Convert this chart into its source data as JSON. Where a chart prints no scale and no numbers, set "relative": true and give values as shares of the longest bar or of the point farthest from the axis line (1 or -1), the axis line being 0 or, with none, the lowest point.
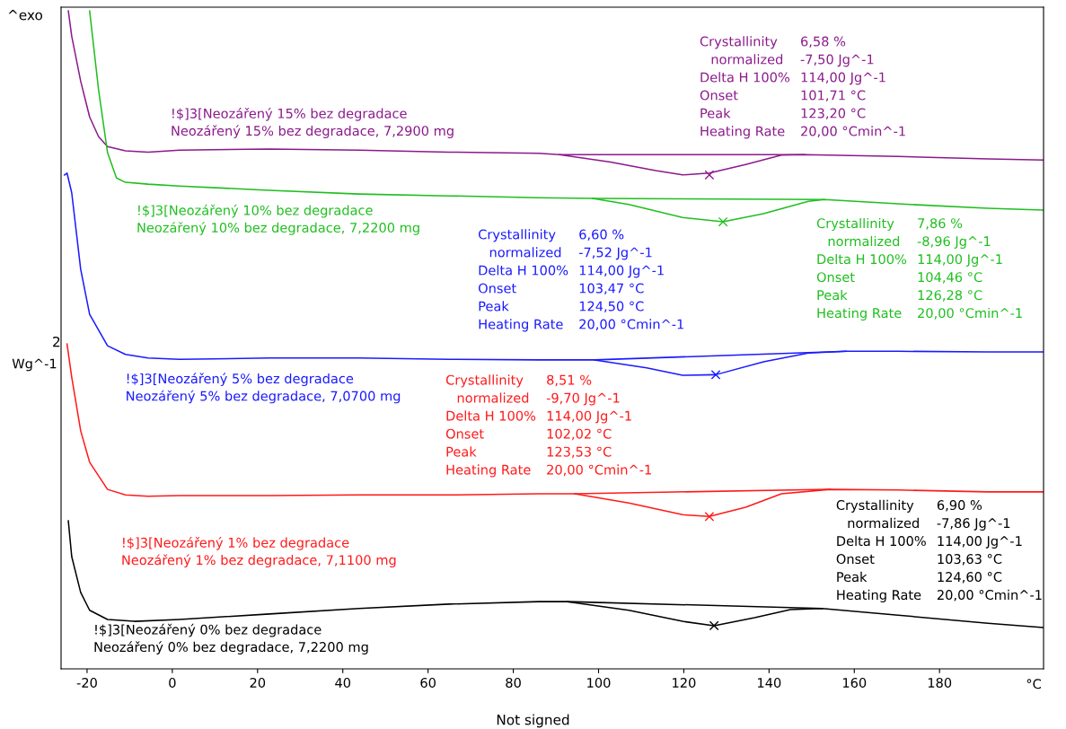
{
  "chart_data": {
    "type": "line",
    "relative": true,
    "xlabel": "°C",
    "ylabel": "Wg^-1",
    "xlim": [
      -26.1,
      204.4
    ],
    "xticks": [
      -20,
      0,
      20,
      40,
      60,
      80,
      100,
      120,
      140,
      160,
      180
    ],
    "tick_labels": "x",
    "grid": false,
    "legend": false,
    "series": [
      {
        "name": "!$]3[Neozářený 15% bez degradace\nNeozářený 15% bez degradace, 7,2900 mg",
        "color": "#8b1a8b",
        "x": [
          -24.4,
          -23.6,
          -21.5,
          -19.4,
          -17.3,
          -15.2,
          -11.0,
          -5.7,
          1.7,
          22.8,
          43.8,
          64.9,
          86.0,
          90.8,
          102.8,
          113.4,
          119.7,
          126.0,
          134.5,
          142.9,
          148.4,
          170.3,
          191.4,
          204.4
        ],
        "values": [
          1.0,
          0.959,
          0.886,
          0.828,
          0.796,
          0.78,
          0.773,
          0.771,
          0.774,
          0.776,
          0.774,
          0.771,
          0.769,
          0.767,
          0.755,
          0.741,
          0.734,
          0.737,
          0.751,
          0.766,
          0.767,
          0.764,
          0.76,
          0.758
        ]
      },
      {
        "name": "!$]3[Neozářený 10% bez degradace\nNeozářený 10% bez degradace, 7,2200 mg",
        "color": "#1fbf1f",
        "x": [
          -19.4,
          -17.3,
          -15.2,
          -13.1,
          -11.0,
          -5.7,
          1.7,
          22.8,
          43.8,
          64.9,
          86.0,
          98.6,
          107.1,
          119.7,
          129.2,
          138.7,
          149.2,
          153.0,
          170.3,
          191.4,
          204.4
        ],
        "values": [
          1.0,
          0.872,
          0.77,
          0.729,
          0.722,
          0.719,
          0.716,
          0.709,
          0.703,
          0.7,
          0.697,
          0.696,
          0.686,
          0.665,
          0.658,
          0.671,
          0.691,
          0.694,
          0.687,
          0.68,
          0.677
        ]
      },
      {
        "name": "!$]3[Neozářený 5% bez degradace\nNeozářený 5% bez degradace, 7,0700 mg",
        "color": "#1a1aff",
        "x": [
          -25.3,
          -24.7,
          -23.6,
          -21.5,
          -19.4,
          -15.2,
          -11.0,
          -5.7,
          1.7,
          22.8,
          43.8,
          64.9,
          86.0,
          99.1,
          111.3,
          119.7,
          127.5,
          138.7,
          149.2,
          158.1,
          170.3,
          191.4,
          204.4
        ],
        "values": [
          0.734,
          0.737,
          0.705,
          0.581,
          0.508,
          0.457,
          0.443,
          0.437,
          0.435,
          0.437,
          0.437,
          0.435,
          0.434,
          0.434,
          0.421,
          0.409,
          0.41,
          0.431,
          0.445,
          0.448,
          0.448,
          0.447,
          0.447
        ]
      },
      {
        "name": "!$]3[Neozářený 1% bez degradace\nNeozářený 1% bez degradace, 7,1100 mg",
        "color": "#ff1a1a",
        "x": [
          -24.7,
          -23.6,
          -21.5,
          -19.4,
          -15.2,
          -11.0,
          -5.7,
          1.7,
          22.8,
          43.8,
          64.9,
          86.0,
          94.4,
          107.1,
          119.7,
          126.0,
          134.5,
          142.9,
          154.3,
          170.3,
          191.4,
          204.4
        ],
        "values": [
          0.46,
          0.406,
          0.319,
          0.268,
          0.224,
          0.215,
          0.213,
          0.214,
          0.214,
          0.215,
          0.215,
          0.217,
          0.217,
          0.202,
          0.183,
          0.18,
          0.195,
          0.217,
          0.224,
          0.223,
          0.22,
          0.22
        ]
      },
      {
        "name": "!$]3[Neozářený 0% bez degradace\nNeozářený 0% bez degradace, 7,2200 mg",
        "color": "#000000",
        "x": [
          -24.4,
          -23.6,
          -21.5,
          -19.4,
          -15.2,
          -8.9,
          1.7,
          22.8,
          43.8,
          64.9,
          86.0,
          92.7,
          107.1,
          119.7,
          127.1,
          136.6,
          145.0,
          152.4,
          170.3,
          191.4,
          204.4
        ],
        "values": [
          0.173,
          0.115,
          0.057,
          0.028,
          0.013,
          0.01,
          0.013,
          0.022,
          0.031,
          0.038,
          0.042,
          0.042,
          0.028,
          0.01,
          0.003,
          0.016,
          0.029,
          0.031,
          0.02,
          0.007,
          0.0
        ]
      },
      {
        "color": "#8b1a8b",
        "x": [
          90.8,
          148.4
        ],
        "values": [
          0.767,
          0.767
        ]
      },
      {
        "color": "#1fbf1f",
        "x": [
          98.6,
          153.0
        ],
        "values": [
          0.696,
          0.694
        ]
      },
      {
        "color": "#1a1aff",
        "x": [
          99.1,
          158.1
        ],
        "values": [
          0.434,
          0.448
        ]
      },
      {
        "color": "#ff1a1a",
        "x": [
          94.4,
          154.3
        ],
        "values": [
          0.217,
          0.224
        ]
      },
      {
        "color": "#000000",
        "x": [
          92.7,
          152.4
        ],
        "values": [
          0.042,
          0.031
        ]
      },
      {
        "type": "scatter",
        "marker": "cross",
        "color": "#8b1a8b",
        "x": [
          126.0
        ],
        "values": [
          0.734
        ]
      },
      {
        "type": "scatter",
        "marker": "cross",
        "color": "#1fbf1f",
        "x": [
          129.2
        ],
        "values": [
          0.658
        ]
      },
      {
        "type": "scatter",
        "marker": "cross",
        "color": "#1a1aff",
        "x": [
          127.5
        ],
        "values": [
          0.41
        ]
      },
      {
        "type": "scatter",
        "marker": "cross",
        "color": "#ff1a1a",
        "x": [
          126.0
        ],
        "values": [
          0.18
        ]
      },
      {
        "type": "scatter",
        "marker": "cross",
        "color": "#000000",
        "x": [
          127.1
        ],
        "values": [
          0.003
        ]
      }
    ],
    "annotations": [
      "^exo",
      "2",
      "Not signed",
      "Crystallinity",
      "6,58 %",
      "normalized",
      "-7,50 Jg^-1",
      "Delta H 100%",
      "114,00 Jg^-1",
      "Onset",
      "101,71 °C",
      "Peak",
      "123,20 °C",
      "Heating Rate",
      "20,00 °Cmin^-1",
      "Crystallinity",
      "7,86 %",
      "normalized",
      "-8,96 Jg^-1",
      "Delta H 100%",
      "114,00 Jg^-1",
      "Onset",
      "104,46 °C",
      "Peak",
      "126,28 °C",
      "Heating Rate",
      "20,00 °Cmin^-1",
      "Crystallinity",
      "6,60 %",
      "normalized",
      "-7,52 Jg^-1",
      "Delta H 100%",
      "114,00 Jg^-1",
      "Onset",
      "103,47 °C",
      "Peak",
      "124,50 °C",
      "Heating Rate",
      "20,00 °Cmin^-1",
      "Crystallinity",
      "8,51 %",
      "normalized",
      "-9,70 Jg^-1",
      "Delta H 100%",
      "114,00 Jg^-1",
      "Onset",
      "102,02 °C",
      "Peak",
      "123,53 °C",
      "Heating Rate",
      "20,00 °Cmin^-1",
      "Crystallinity",
      "6,90 %",
      "normalized",
      "-7,86 Jg^-1",
      "Delta H 100%",
      "114,00 Jg^-1",
      "Onset",
      "103,63 °C",
      "Peak",
      "124,60 °C",
      "Heating Rate",
      "20,00 °Cmin^-1"
    ]
  }
}
